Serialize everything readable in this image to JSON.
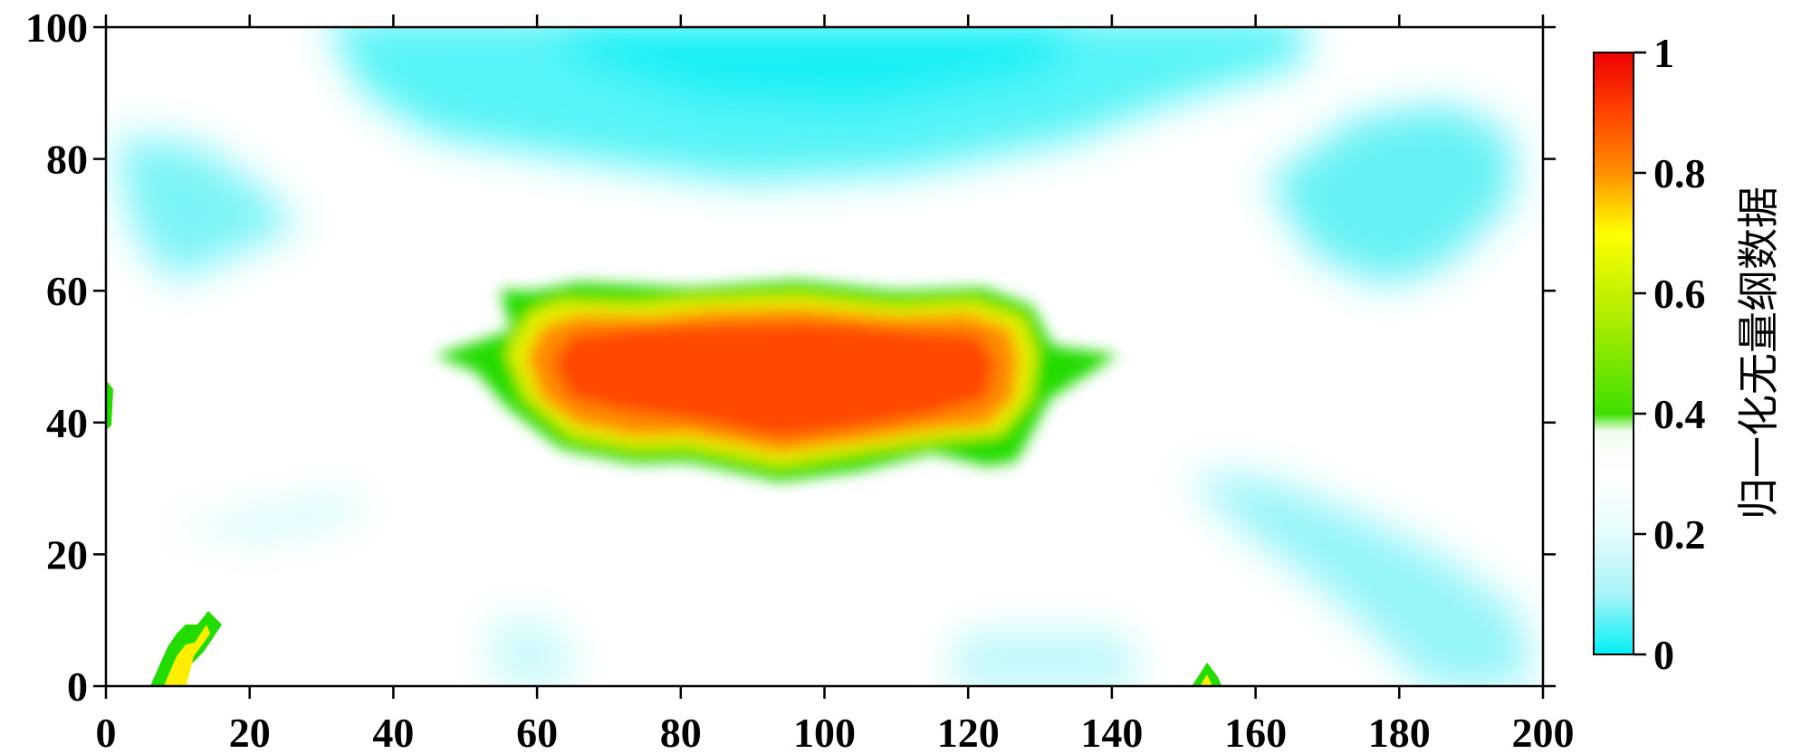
{
  "chart_data": {
    "type": "heatmap",
    "title": "",
    "xlabel": "",
    "ylabel": "",
    "xlim": [
      0,
      200
    ],
    "ylim": [
      0,
      100
    ],
    "x_ticks": [
      "0",
      "20",
      "40",
      "60",
      "80",
      "100",
      "120",
      "140",
      "160",
      "180",
      "200"
    ],
    "y_ticks": [
      "0",
      "20",
      "40",
      "60",
      "80",
      "100"
    ],
    "grid": false,
    "colorbar": {
      "label": "归一化无量纲数据",
      "range": [
        0,
        1
      ],
      "ticks": [
        "0",
        "0.2",
        "0.4",
        "0.6",
        "0.8",
        "1"
      ],
      "colormap": [
        {
          "v": 0.0,
          "color": "#00f0f5"
        },
        {
          "v": 0.1,
          "color": "#a8f4f8"
        },
        {
          "v": 0.2,
          "color": "#e6fbfc"
        },
        {
          "v": 0.3,
          "color": "#ffffff"
        },
        {
          "v": 0.37,
          "color": "#f2fdf0"
        },
        {
          "v": 0.4,
          "color": "#3fe000"
        },
        {
          "v": 0.55,
          "color": "#a8ec00"
        },
        {
          "v": 0.7,
          "color": "#ffff00"
        },
        {
          "v": 0.8,
          "color": "#ff9000"
        },
        {
          "v": 0.9,
          "color": "#ff4400"
        },
        {
          "v": 1.0,
          "color": "#ee0000"
        }
      ]
    },
    "background_value": 0.3,
    "features": [
      {
        "kind": "hotspot",
        "label": "central high region",
        "x_range": [
          60,
          130
        ],
        "y_range": [
          33,
          62
        ],
        "peak_value": 0.85
      },
      {
        "kind": "low",
        "label": "top band",
        "x_range": [
          30,
          150
        ],
        "y_range": [
          80,
          100
        ],
        "min_value": 0.05
      },
      {
        "kind": "low",
        "label": "upper left lobe",
        "x_range": [
          0,
          30
        ],
        "y_range": [
          58,
          88
        ],
        "min_value": 0.12
      },
      {
        "kind": "low",
        "label": "upper right lobe",
        "x_range": [
          160,
          200
        ],
        "y_range": [
          60,
          88
        ],
        "min_value": 0.12
      },
      {
        "kind": "low",
        "label": "lower right streak",
        "x_range": [
          150,
          200
        ],
        "y_range": [
          0,
          30
        ],
        "min_value": 0.15
      },
      {
        "kind": "high",
        "label": "small bottom-left spike",
        "x_range": [
          7,
          16
        ],
        "y_range": [
          0,
          10
        ],
        "peak_value": 0.6
      }
    ]
  }
}
